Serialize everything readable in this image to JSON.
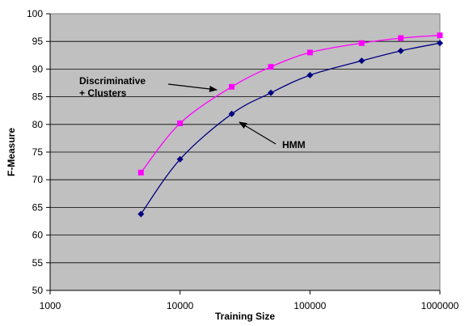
{
  "chart_data": {
    "type": "line",
    "title": "",
    "xlabel": "Training Size",
    "ylabel": "F-Measure",
    "xscale": "log",
    "xlim": [
      1000,
      1000000
    ],
    "ylim": [
      50,
      100
    ],
    "xticks": [
      1000,
      10000,
      100000,
      1000000
    ],
    "xtick_labels": [
      "1000",
      "10000",
      "100000",
      "1000000"
    ],
    "yticks": [
      50,
      55,
      60,
      65,
      70,
      75,
      80,
      85,
      90,
      95,
      100
    ],
    "ytick_labels": [
      "50",
      "55",
      "60",
      "65",
      "70",
      "75",
      "80",
      "85",
      "90",
      "95",
      "100"
    ],
    "grid": "horizontal",
    "plot_background": "#c0c0c0",
    "series": [
      {
        "label_lines": [
          "Discriminative",
          "+ Clusters"
        ],
        "color": "#ff00ff",
        "marker": "square",
        "x": [
          5000,
          10000,
          25000,
          50000,
          100000,
          250000,
          500000,
          1000000
        ],
        "y": [
          71.3,
          80.2,
          86.8,
          90.4,
          93.0,
          94.7,
          95.6,
          96.1
        ]
      },
      {
        "label_lines": [
          "HMM"
        ],
        "color": "#000080",
        "marker": "diamond",
        "x": [
          5000,
          10000,
          25000,
          50000,
          100000,
          250000,
          500000,
          1000000
        ],
        "y": [
          63.8,
          73.7,
          81.9,
          85.7,
          88.9,
          91.5,
          93.3,
          94.7
        ]
      }
    ]
  }
}
